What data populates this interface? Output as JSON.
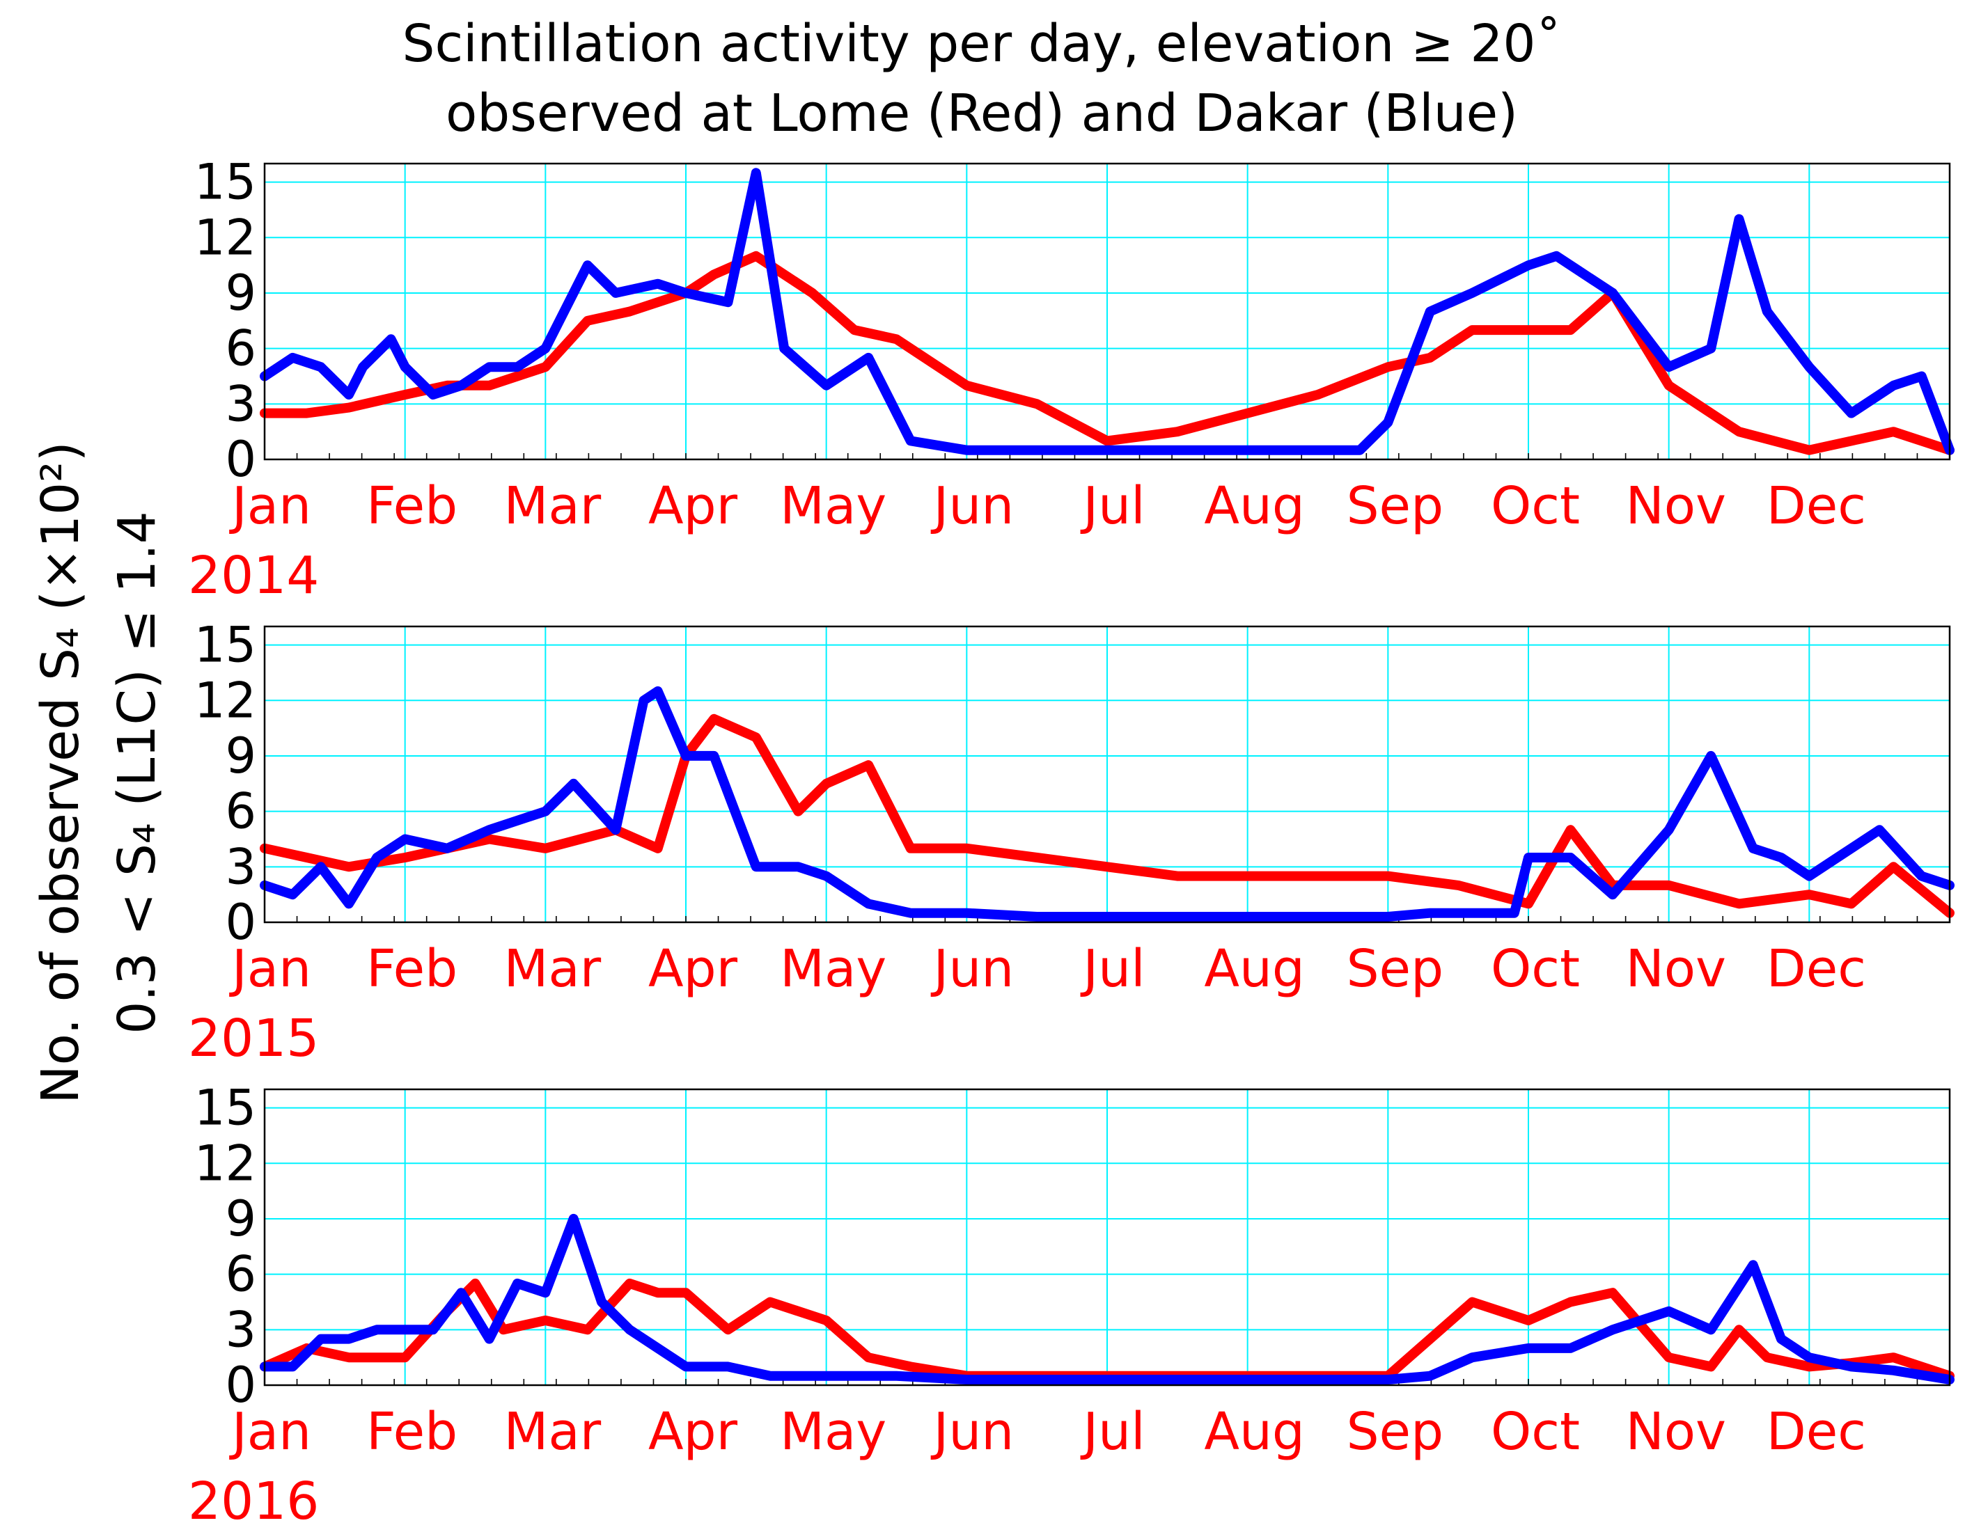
{
  "colors": {
    "lome": "#ff0000",
    "dakar": "#0000ff",
    "grid": "#00f2ff",
    "month_label": "#ff0000"
  },
  "chart_data": {
    "type": "line",
    "title": [
      "Scintillation activity per day, elevation  ≥ 20˚",
      "observed at Lome (Red) and Dakar (Blue)"
    ],
    "ylabel": [
      "No. of observed S₄ (×10²)",
      "0.3 < S₄ (L1C) ≤ 1.4"
    ],
    "ylim": [
      0,
      16
    ],
    "yticks": [
      "0",
      "3",
      "6",
      "9",
      "12",
      "15"
    ],
    "month_labels": [
      "Jan",
      "Feb",
      "Mar",
      "Apr",
      "May",
      "Jun",
      "Jul",
      "Aug",
      "Sep",
      "Oct",
      "Nov",
      "Dec"
    ],
    "x_unit": "month (0 = 1 Jan, 12 = 31 Dec)",
    "legend": [
      "Lome (Red)",
      "Dakar (Blue)"
    ],
    "panels": [
      {
        "year": "2014",
        "series": [
          {
            "name": "Lome",
            "color": "#ff0000",
            "x": [
              0,
              0.3,
              0.6,
              1,
              1.3,
              1.6,
              2,
              2.3,
              2.6,
              3,
              3.2,
              3.5,
              3.9,
              4.2,
              4.5,
              5,
              5.5,
              6,
              6.5,
              7,
              7.5,
              8,
              8.3,
              8.6,
              9,
              9.3,
              9.6,
              10,
              10.5,
              11,
              11.3,
              11.6,
              12
            ],
            "y": [
              2.5,
              2.5,
              2.8,
              3.5,
              4,
              4,
              5,
              7.5,
              8,
              9,
              10,
              11,
              9,
              7,
              6.5,
              4,
              3,
              1,
              1.5,
              2.5,
              3.5,
              5,
              5.5,
              7,
              7,
              7,
              9,
              4,
              1.5,
              0.5,
              1,
              1.5,
              0.5
            ]
          },
          {
            "name": "Dakar",
            "color": "#0000ff",
            "x": [
              0,
              0.2,
              0.4,
              0.6,
              0.7,
              0.9,
              1,
              1.2,
              1.4,
              1.6,
              1.8,
              2,
              2.3,
              2.5,
              2.8,
              3,
              3.3,
              3.5,
              3.7,
              4,
              4.3,
              4.6,
              5,
              5.5,
              6,
              6.5,
              7,
              7.5,
              7.8,
              8,
              8.3,
              8.6,
              9,
              9.2,
              9.6,
              10,
              10.3,
              10.5,
              10.7,
              11,
              11.3,
              11.6,
              11.8,
              12
            ],
            "y": [
              4.5,
              5.5,
              5,
              3.5,
              5,
              6.5,
              5,
              3.5,
              4,
              5,
              5,
              6,
              10.5,
              9,
              9.5,
              9,
              8.5,
              15.5,
              6,
              4,
              5.5,
              1,
              0.5,
              0.5,
              0.5,
              0.5,
              0.5,
              0.5,
              0.5,
              2,
              8,
              9,
              10.5,
              11,
              9,
              5,
              6,
              13,
              8,
              5,
              2.5,
              4,
              4.5,
              0.5
            ]
          }
        ]
      },
      {
        "year": "2015",
        "series": [
          {
            "name": "Lome",
            "color": "#ff0000",
            "x": [
              0,
              0.3,
              0.6,
              1,
              1.3,
              1.6,
              2,
              2.5,
              2.8,
              3,
              3.2,
              3.5,
              3.8,
              4,
              4.3,
              4.6,
              5,
              5.5,
              6,
              6.5,
              7,
              7.5,
              8,
              8.5,
              9,
              9.3,
              9.6,
              10,
              10.5,
              11,
              11.3,
              11.6,
              12
            ],
            "y": [
              4,
              3.5,
              3,
              3.5,
              4,
              4.5,
              4,
              5,
              4,
              9,
              11,
              10,
              6,
              7.5,
              8.5,
              4,
              4,
              3.5,
              3,
              2.5,
              2.5,
              2.5,
              2.5,
              2,
              1,
              5,
              2,
              2,
              1,
              1.5,
              1,
              3,
              0.5
            ]
          },
          {
            "name": "Dakar",
            "color": "#0000ff",
            "x": [
              0,
              0.2,
              0.4,
              0.6,
              0.8,
              1,
              1.3,
              1.6,
              2,
              2.2,
              2.5,
              2.7,
              2.8,
              3,
              3.2,
              3.5,
              3.8,
              4,
              4.3,
              4.6,
              5,
              5.5,
              6,
              6.5,
              7,
              7.5,
              8,
              8.3,
              8.6,
              8.9,
              9,
              9.3,
              9.6,
              10,
              10.3,
              10.6,
              10.8,
              11,
              11.2,
              11.5,
              11.8,
              12
            ],
            "y": [
              2,
              1.5,
              3,
              1,
              3.5,
              4.5,
              4,
              5,
              6,
              7.5,
              5,
              12,
              12.5,
              9,
              9,
              3,
              3,
              2.5,
              1,
              0.5,
              0.5,
              0.3,
              0.3,
              0.3,
              0.3,
              0.3,
              0.3,
              0.5,
              0.5,
              0.5,
              3.5,
              3.5,
              1.5,
              5,
              9,
              4,
              3.5,
              2.5,
              3.5,
              5,
              2.5,
              2
            ]
          }
        ]
      },
      {
        "year": "2016",
        "series": [
          {
            "name": "Lome",
            "color": "#ff0000",
            "x": [
              0,
              0.3,
              0.6,
              1,
              1.3,
              1.5,
              1.7,
              2,
              2.3,
              2.6,
              2.8,
              3,
              3.3,
              3.6,
              4,
              4.3,
              4.6,
              5,
              5.5,
              6,
              6.5,
              7,
              7.5,
              8,
              8.3,
              8.6,
              9,
              9.3,
              9.6,
              10,
              10.3,
              10.5,
              10.7,
              11,
              11.3,
              11.6,
              12
            ],
            "y": [
              1,
              2,
              1.5,
              1.5,
              4,
              5.5,
              3,
              3.5,
              3,
              5.5,
              5,
              5,
              3,
              4.5,
              3.5,
              1.5,
              1,
              0.5,
              0.5,
              0.5,
              0.5,
              0.5,
              0.5,
              0.5,
              2.5,
              4.5,
              3.5,
              4.5,
              5,
              1.5,
              1,
              3,
              1.5,
              1,
              1.2,
              1.5,
              0.5
            ]
          },
          {
            "name": "Dakar",
            "color": "#0000ff",
            "x": [
              0,
              0.2,
              0.4,
              0.6,
              0.8,
              1,
              1.2,
              1.4,
              1.6,
              1.8,
              2,
              2.2,
              2.4,
              2.6,
              2.8,
              3,
              3.3,
              3.6,
              4,
              4.5,
              5,
              5.5,
              6,
              6.5,
              7,
              7.5,
              8,
              8.3,
              8.6,
              9,
              9.3,
              9.6,
              10,
              10.3,
              10.6,
              10.8,
              11,
              11.3,
              11.6,
              12
            ],
            "y": [
              1,
              1,
              2.5,
              2.5,
              3,
              3,
              3,
              5,
              2.5,
              5.5,
              5,
              9,
              4.5,
              3,
              2,
              1,
              1,
              0.5,
              0.5,
              0.5,
              0.3,
              0.3,
              0.3,
              0.3,
              0.3,
              0.3,
              0.3,
              0.5,
              1.5,
              2,
              2,
              3,
              4,
              3,
              6.5,
              2.5,
              1.5,
              1,
              0.8,
              0.3
            ]
          }
        ]
      }
    ]
  }
}
